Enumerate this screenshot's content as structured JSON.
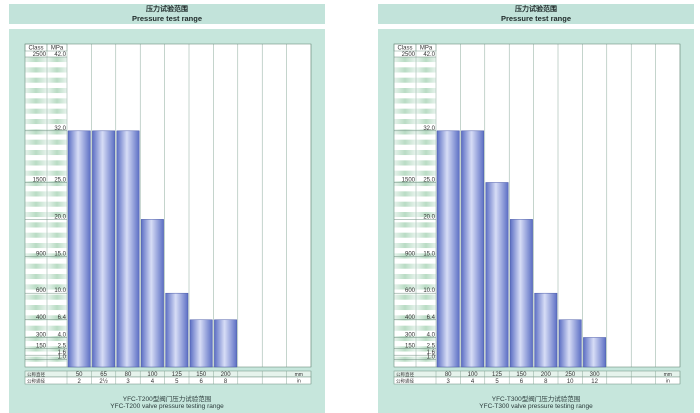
{
  "chart_data": [
    {
      "type": "bar",
      "title_cn": "压力试验范围",
      "title_en": "Pressure test range",
      "caption_cn": "YFC-T200型阀门压力试验范围",
      "caption_en": "YFC-T200 valve pressure testing range",
      "header_class": "Class",
      "header_unit": "MPa",
      "ylim": [
        0,
        42
      ],
      "ytick_mpa": [
        {
          "v": 42.0,
          "label": "42.0",
          "cls": "2500"
        },
        {
          "v": 32.0,
          "label": "32.0",
          "cls": ""
        },
        {
          "v": 25.0,
          "label": "25.0",
          "cls": "1500"
        },
        {
          "v": 20.0,
          "label": "20.0",
          "cls": ""
        },
        {
          "v": 15.0,
          "label": "15.0",
          "cls": "900"
        },
        {
          "v": 10.0,
          "label": "10.0",
          "cls": "600"
        },
        {
          "v": 6.4,
          "label": "6.4",
          "cls": "400"
        },
        {
          "v": 4.0,
          "label": "4.0",
          "cls": "300"
        },
        {
          "v": 2.5,
          "label": "2.5",
          "cls": "150"
        },
        {
          "v": 1.6,
          "label": "1.6",
          "cls": ""
        },
        {
          "v": 1.0,
          "label": "1.0",
          "cls": ""
        }
      ],
      "row_label_dn": "公称直径",
      "row_label_nps": "公称通径",
      "unit_mm": "mm",
      "unit_in": "in",
      "categories": [
        "50",
        "65",
        "80",
        "100",
        "125",
        "150",
        "200"
      ],
      "nps": [
        "2",
        "2½",
        "3",
        "4",
        "5",
        "6",
        "8"
      ],
      "values": [
        32.0,
        32.0,
        32.0,
        20.0,
        10.0,
        6.4,
        6.4
      ],
      "empty_columns": 3
    },
    {
      "type": "bar",
      "title_cn": "压力试验范围",
      "title_en": "Pressure test range",
      "caption_cn": "YFC-T300型阀门压力试验范围",
      "caption_en": "YFC-T300 valve pressure testing range",
      "header_class": "Class",
      "header_unit": "MPa",
      "ylim": [
        0,
        42
      ],
      "ytick_mpa": [
        {
          "v": 42.0,
          "label": "42.0",
          "cls": "2500"
        },
        {
          "v": 32.0,
          "label": "32.0",
          "cls": ""
        },
        {
          "v": 25.0,
          "label": "25.0",
          "cls": "1500"
        },
        {
          "v": 20.0,
          "label": "20.0",
          "cls": ""
        },
        {
          "v": 15.0,
          "label": "15.0",
          "cls": "900"
        },
        {
          "v": 10.0,
          "label": "10.0",
          "cls": "600"
        },
        {
          "v": 6.4,
          "label": "6.4",
          "cls": "400"
        },
        {
          "v": 4.0,
          "label": "4.0",
          "cls": "300"
        },
        {
          "v": 2.5,
          "label": "2.5",
          "cls": "150"
        },
        {
          "v": 1.6,
          "label": "1.6",
          "cls": ""
        },
        {
          "v": 1.0,
          "label": "1.0",
          "cls": ""
        }
      ],
      "row_label_dn": "公称直径",
      "row_label_nps": "公称通径",
      "unit_mm": "mm",
      "unit_in": "in",
      "categories": [
        "80",
        "100",
        "125",
        "150",
        "200",
        "250",
        "300"
      ],
      "nps": [
        "3",
        "4",
        "5",
        "6",
        "8",
        "10",
        "12"
      ],
      "values": [
        32.0,
        32.0,
        25.0,
        20.0,
        10.0,
        6.4,
        4.0
      ],
      "empty_columns": 3
    }
  ]
}
